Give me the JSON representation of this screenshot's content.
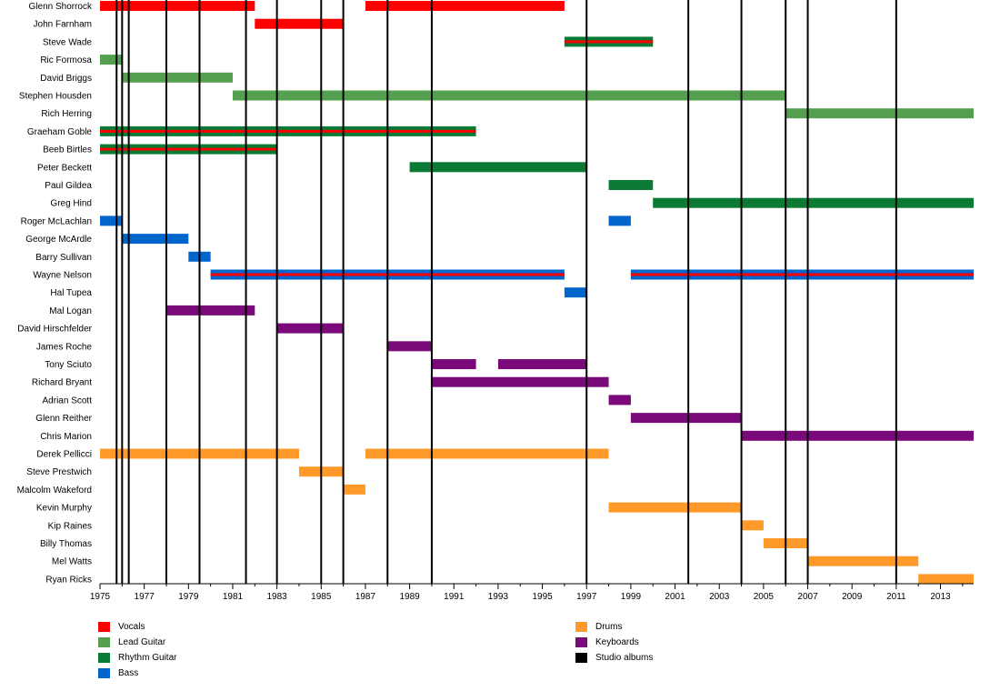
{
  "chart_data": {
    "type": "bar",
    "subtype": "timeline",
    "title": "",
    "xlabel": "",
    "ylabel": "",
    "xlim": [
      1975,
      2014.5
    ],
    "x_ticks": [
      1975,
      1977,
      1979,
      1981,
      1983,
      1985,
      1987,
      1989,
      1991,
      1993,
      1995,
      1997,
      1999,
      2001,
      2003,
      2005,
      2007,
      2009,
      2011,
      2013
    ],
    "grid": false,
    "legend_position": "bottom",
    "roles": [
      {
        "key": "vocals",
        "label": "Vocals",
        "color": "#ff0000"
      },
      {
        "key": "lead",
        "label": "Lead Guitar",
        "color": "#55a050"
      },
      {
        "key": "rhythm",
        "label": "Rhythm Guitar",
        "color": "#0b7a34"
      },
      {
        "key": "bass",
        "label": "Bass",
        "color": "#0066cc"
      },
      {
        "key": "drums",
        "label": "Drums",
        "color": "#ff9a2a"
      },
      {
        "key": "keys",
        "label": "Keyboards",
        "color": "#7a0a7a"
      },
      {
        "key": "albums",
        "label": "Studio albums",
        "color": "#000000"
      }
    ],
    "members": [
      {
        "name": "Glenn Shorrock",
        "periods": [
          {
            "role": "vocals",
            "start": 1975,
            "end": 1982
          },
          {
            "role": "vocals",
            "start": 1987,
            "end": 1996
          }
        ]
      },
      {
        "name": "John Farnham",
        "periods": [
          {
            "role": "vocals",
            "start": 1982,
            "end": 1986
          }
        ]
      },
      {
        "name": "Steve Wade",
        "periods": [
          {
            "role": "rhythm",
            "start": 1996,
            "end": 2000,
            "secondary": "vocals"
          }
        ]
      },
      {
        "name": "Ric Formosa",
        "periods": [
          {
            "role": "lead",
            "start": 1975,
            "end": 1976
          }
        ]
      },
      {
        "name": "David Briggs",
        "periods": [
          {
            "role": "lead",
            "start": 1976,
            "end": 1981
          }
        ]
      },
      {
        "name": "Stephen Housden",
        "periods": [
          {
            "role": "lead",
            "start": 1981,
            "end": 2006
          }
        ]
      },
      {
        "name": "Rich Herring",
        "periods": [
          {
            "role": "lead",
            "start": 2006,
            "end": 2014.5
          }
        ]
      },
      {
        "name": "Graeham Goble",
        "periods": [
          {
            "role": "rhythm",
            "start": 1975,
            "end": 1992,
            "secondary": "vocals"
          }
        ]
      },
      {
        "name": "Beeb Birtles",
        "periods": [
          {
            "role": "rhythm",
            "start": 1975,
            "end": 1983,
            "secondary": "vocals"
          }
        ]
      },
      {
        "name": "Peter Beckett",
        "periods": [
          {
            "role": "rhythm",
            "start": 1989,
            "end": 1997
          }
        ]
      },
      {
        "name": "Paul Gildea",
        "periods": [
          {
            "role": "rhythm",
            "start": 1998,
            "end": 2000
          }
        ]
      },
      {
        "name": "Greg Hind",
        "periods": [
          {
            "role": "rhythm",
            "start": 2000,
            "end": 2014.5
          }
        ]
      },
      {
        "name": "Roger McLachlan",
        "periods": [
          {
            "role": "bass",
            "start": 1975,
            "end": 1976
          },
          {
            "role": "bass",
            "start": 1998,
            "end": 1999
          }
        ]
      },
      {
        "name": "George McArdle",
        "periods": [
          {
            "role": "bass",
            "start": 1976,
            "end": 1979
          }
        ]
      },
      {
        "name": "Barry Sullivan",
        "periods": [
          {
            "role": "bass",
            "start": 1979,
            "end": 1980
          }
        ]
      },
      {
        "name": "Wayne Nelson",
        "periods": [
          {
            "role": "bass",
            "start": 1980,
            "end": 1996,
            "secondary": "vocals"
          },
          {
            "role": "bass",
            "start": 1999,
            "end": 2014.5,
            "secondary": "vocals"
          }
        ]
      },
      {
        "name": "Hal Tupea",
        "periods": [
          {
            "role": "bass",
            "start": 1996,
            "end": 1997
          }
        ]
      },
      {
        "name": "Mal Logan",
        "periods": [
          {
            "role": "keys",
            "start": 1978,
            "end": 1982
          }
        ]
      },
      {
        "name": "David Hirschfelder",
        "periods": [
          {
            "role": "keys",
            "start": 1983,
            "end": 1986
          }
        ]
      },
      {
        "name": "James Roche",
        "periods": [
          {
            "role": "keys",
            "start": 1988,
            "end": 1990
          }
        ]
      },
      {
        "name": "Tony Sciuto",
        "periods": [
          {
            "role": "keys",
            "start": 1990,
            "end": 1992
          },
          {
            "role": "keys",
            "start": 1993,
            "end": 1997
          }
        ]
      },
      {
        "name": "Richard Bryant",
        "periods": [
          {
            "role": "keys",
            "start": 1990,
            "end": 1998
          }
        ]
      },
      {
        "name": "Adrian Scott",
        "periods": [
          {
            "role": "keys",
            "start": 1998,
            "end": 1999
          }
        ]
      },
      {
        "name": "Glenn Reither",
        "periods": [
          {
            "role": "keys",
            "start": 1999,
            "end": 2004
          }
        ]
      },
      {
        "name": "Chris Marion",
        "periods": [
          {
            "role": "keys",
            "start": 2004,
            "end": 2014.5
          }
        ]
      },
      {
        "name": "Derek Pellicci",
        "periods": [
          {
            "role": "drums",
            "start": 1975,
            "end": 1984
          },
          {
            "role": "drums",
            "start": 1987,
            "end": 1998
          }
        ]
      },
      {
        "name": "Steve Prestwich",
        "periods": [
          {
            "role": "drums",
            "start": 1984,
            "end": 1986
          }
        ]
      },
      {
        "name": "Malcolm Wakeford",
        "periods": [
          {
            "role": "drums",
            "start": 1986,
            "end": 1987
          }
        ]
      },
      {
        "name": "Kevin Murphy",
        "periods": [
          {
            "role": "drums",
            "start": 1998,
            "end": 2004
          }
        ]
      },
      {
        "name": "Kip Raines",
        "periods": [
          {
            "role": "drums",
            "start": 2004,
            "end": 2005
          }
        ]
      },
      {
        "name": "Billy Thomas",
        "periods": [
          {
            "role": "drums",
            "start": 2005,
            "end": 2007
          }
        ]
      },
      {
        "name": "Mel Watts",
        "periods": [
          {
            "role": "drums",
            "start": 2007,
            "end": 2012
          }
        ]
      },
      {
        "name": "Ryan Ricks",
        "periods": [
          {
            "role": "drums",
            "start": 2012,
            "end": 2014.5
          }
        ]
      }
    ],
    "studio_albums": [
      1975.75,
      1976.0,
      1976.3,
      1978.0,
      1979.5,
      1981.6,
      1983.0,
      1985.0,
      1986.0,
      1988.0,
      1990.0,
      1997.0,
      2001.6,
      2004.0,
      2006.0,
      2007.0,
      2011.0
    ]
  }
}
